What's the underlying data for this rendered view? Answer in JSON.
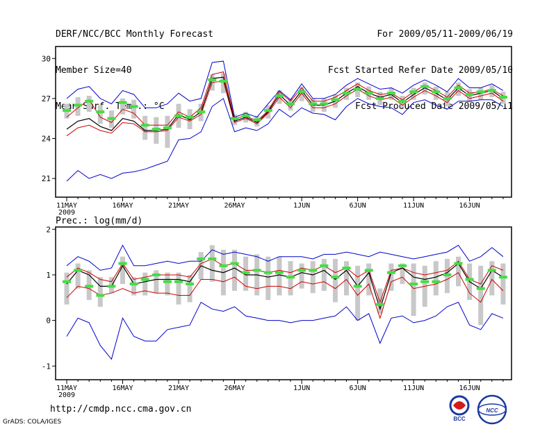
{
  "header": {
    "title": "DERF/NCC/BCC Monthly Forecast",
    "member": "Member Size=40",
    "variable": "Mean Surf. Temp.: °C",
    "period": "For 2009/05/11-2009/06/19",
    "started": "Fcst Started Refer Date 2009/05/10",
    "produced": "Fcst Produced Date 2009/05/11"
  },
  "footer": {
    "url": "http://cmdp.ncc.cma.gov.cn",
    "credit": "GrADS: COLA/IGES",
    "logo_bcc": "BCC",
    "logo_ncc": "NCC"
  },
  "colors": {
    "ensemble_mean": "#000000",
    "range": "#0000cc",
    "spread": "#cc0000",
    "box": "#c8c8c8",
    "median": "#44dd44"
  },
  "chart_data": [
    {
      "type": "line",
      "title": "Mean Surf. Temp.: °C",
      "x_tick_labels": [
        "11MAY",
        "16MAY",
        "21MAY",
        "26MAY",
        "1JUN",
        "6JUN",
        "11JUN",
        "16JUN"
      ],
      "x_tick_days": [
        0,
        5,
        10,
        15,
        21,
        26,
        31,
        36
      ],
      "year_label": "2009",
      "ylim": [
        19.6,
        30.9
      ],
      "y_ticks": [
        21,
        24,
        27,
        30
      ],
      "series": [
        {
          "name": "max",
          "role": "range",
          "values": [
            27.0,
            27.7,
            27.9,
            27.0,
            26.6,
            27.6,
            27.3,
            26.3,
            26.3,
            26.6,
            27.4,
            26.8,
            27.0,
            29.7,
            29.8,
            25.6,
            25.9,
            25.6,
            26.6,
            27.6,
            26.9,
            28.1,
            27.0,
            27.0,
            27.3,
            28.0,
            28.5,
            28.1,
            27.7,
            27.8,
            27.4,
            28.0,
            28.4,
            28.0,
            27.5,
            28.5,
            27.8,
            27.8,
            28.1,
            27.6
          ]
        },
        {
          "name": "upper",
          "role": "spread",
          "values": [
            25.6,
            26.3,
            26.9,
            25.6,
            25.2,
            26.2,
            25.9,
            25.0,
            25.0,
            25.0,
            26.0,
            25.6,
            26.3,
            28.8,
            29.0,
            25.5,
            25.7,
            25.3,
            26.1,
            27.5,
            26.8,
            27.8,
            26.8,
            26.8,
            27.1,
            27.6,
            28.1,
            27.6,
            27.3,
            27.4,
            26.9,
            27.5,
            28.0,
            27.6,
            27.1,
            28.0,
            27.4,
            27.5,
            27.7,
            27.2
          ]
        },
        {
          "name": "mean",
          "role": "ensemble_mean",
          "values": [
            24.7,
            25.3,
            25.5,
            24.9,
            24.6,
            25.5,
            25.3,
            24.6,
            24.6,
            24.7,
            25.8,
            25.4,
            26.0,
            28.5,
            28.6,
            25.3,
            25.6,
            25.2,
            26.0,
            27.3,
            26.5,
            27.6,
            26.5,
            26.5,
            26.8,
            27.4,
            27.9,
            27.4,
            27.1,
            27.3,
            26.7,
            27.3,
            27.8,
            27.4,
            26.9,
            27.8,
            27.2,
            27.4,
            27.6,
            27.0
          ]
        },
        {
          "name": "lower",
          "role": "spread",
          "values": [
            24.2,
            24.8,
            25.0,
            24.6,
            24.4,
            25.2,
            25.1,
            24.5,
            24.5,
            24.6,
            25.6,
            25.3,
            25.8,
            28.2,
            28.3,
            25.2,
            25.5,
            25.1,
            25.9,
            27.1,
            26.3,
            27.4,
            26.3,
            26.3,
            26.6,
            27.2,
            27.7,
            27.2,
            26.9,
            27.1,
            26.5,
            27.1,
            27.6,
            27.2,
            26.7,
            27.6,
            27.0,
            27.2,
            27.4,
            26.8
          ]
        },
        {
          "name": "min",
          "role": "range",
          "values": [
            20.8,
            21.6,
            21.0,
            21.3,
            21.0,
            21.4,
            21.5,
            21.7,
            22.0,
            22.3,
            23.9,
            24.0,
            24.5,
            26.4,
            27.0,
            24.5,
            24.8,
            24.6,
            25.1,
            26.2,
            25.6,
            26.3,
            25.9,
            25.8,
            25.4,
            26.4,
            27.0,
            26.6,
            26.4,
            26.3,
            25.8,
            26.7,
            26.9,
            26.5,
            26.2,
            26.8,
            26.8,
            26.9,
            26.9,
            26.4
          ]
        },
        {
          "name": "median",
          "role": "median",
          "values": [
            26.1,
            26.5,
            26.8,
            26.0,
            25.5,
            26.7,
            26.4,
            25.0,
            24.7,
            24.8,
            25.7,
            25.6,
            26.0,
            28.4,
            28.3,
            25.5,
            25.7,
            25.4,
            26.1,
            27.2,
            26.6,
            27.5,
            26.6,
            26.6,
            26.9,
            27.4,
            27.7,
            27.4,
            27.0,
            27.4,
            26.8,
            27.5,
            27.9,
            27.5,
            27.0,
            27.8,
            27.3,
            27.5,
            27.6,
            27.1
          ]
        },
        {
          "name": "box_top",
          "role": "box",
          "values": [
            26.6,
            27.1,
            27.2,
            26.5,
            26.1,
            27.0,
            26.9,
            25.7,
            25.6,
            25.7,
            26.6,
            26.2,
            26.6,
            28.8,
            28.9,
            25.8,
            26.0,
            25.7,
            26.5,
            27.6,
            27.0,
            27.9,
            27.0,
            27.0,
            27.3,
            27.8,
            28.2,
            27.9,
            27.5,
            27.8,
            27.2,
            27.8,
            28.2,
            27.9,
            27.5,
            28.2,
            27.7,
            27.8,
            28.0,
            27.5
          ]
        },
        {
          "name": "box_bottom",
          "role": "box",
          "values": [
            25.5,
            25.7,
            26.0,
            25.1,
            24.8,
            25.8,
            25.5,
            23.9,
            23.6,
            23.3,
            24.8,
            24.7,
            25.3,
            27.6,
            27.4,
            25.0,
            25.2,
            24.9,
            25.5,
            26.6,
            26.1,
            26.8,
            26.0,
            26.0,
            26.3,
            26.9,
            27.1,
            26.9,
            26.5,
            26.9,
            26.3,
            26.9,
            27.3,
            26.9,
            26.4,
            27.2,
            26.7,
            26.9,
            27.1,
            26.6
          ]
        }
      ]
    },
    {
      "type": "line",
      "title": "Prec.: log(mm/d)",
      "x_tick_labels": [
        "11MAY",
        "16MAY",
        "21MAY",
        "26MAY",
        "1JUN",
        "6JUN",
        "11JUN",
        "16JUN"
      ],
      "x_tick_days": [
        0,
        5,
        10,
        15,
        21,
        26,
        31,
        36
      ],
      "year_label": "2009",
      "ylim": [
        -1.3,
        2.05
      ],
      "y_ticks": [
        -1,
        0,
        1,
        2
      ],
      "series": [
        {
          "name": "max",
          "role": "range",
          "values": [
            1.2,
            1.4,
            1.3,
            1.1,
            1.15,
            1.65,
            1.2,
            1.2,
            1.25,
            1.3,
            1.25,
            1.3,
            1.3,
            1.55,
            1.45,
            1.5,
            1.45,
            1.4,
            1.3,
            1.4,
            1.4,
            1.4,
            1.35,
            1.45,
            1.45,
            1.5,
            1.45,
            1.4,
            1.5,
            1.45,
            1.4,
            1.35,
            1.4,
            1.45,
            1.5,
            1.65,
            1.3,
            1.4,
            1.6,
            1.4
          ]
        },
        {
          "name": "upper",
          "role": "spread",
          "values": [
            0.95,
            1.15,
            1.05,
            0.9,
            0.85,
            1.25,
            0.9,
            0.95,
            1.0,
            1.0,
            1.0,
            0.95,
            1.25,
            1.35,
            1.2,
            1.25,
            1.1,
            1.1,
            1.05,
            1.1,
            1.05,
            1.15,
            1.1,
            1.2,
            1.05,
            1.15,
            0.95,
            1.1,
            0.4,
            1.1,
            1.15,
            1.05,
            1.0,
            1.05,
            1.1,
            1.3,
            0.9,
            0.8,
            1.2,
            1.1
          ]
        },
        {
          "name": "mean",
          "role": "ensemble_mean",
          "values": [
            0.8,
            1.1,
            1.0,
            0.75,
            0.75,
            1.2,
            0.8,
            0.85,
            0.9,
            0.9,
            0.9,
            0.85,
            1.2,
            1.1,
            1.05,
            1.15,
            1.0,
            1.0,
            0.95,
            1.0,
            0.95,
            1.05,
            1.0,
            1.1,
            0.9,
            1.1,
            0.75,
            1.05,
            0.25,
            1.05,
            1.15,
            0.95,
            0.9,
            0.95,
            1.05,
            1.25,
            0.85,
            0.7,
            1.1,
            0.95
          ]
        },
        {
          "name": "lower",
          "role": "spread",
          "values": [
            0.5,
            0.75,
            0.7,
            0.55,
            0.6,
            0.7,
            0.6,
            0.65,
            0.6,
            0.6,
            0.55,
            0.55,
            0.9,
            0.9,
            0.85,
            0.95,
            0.75,
            0.7,
            0.75,
            0.75,
            0.7,
            0.85,
            0.8,
            0.85,
            0.7,
            0.9,
            0.55,
            0.8,
            0.05,
            0.85,
            0.95,
            0.7,
            0.75,
            0.8,
            0.9,
            1.05,
            0.6,
            0.4,
            0.9,
            0.65
          ]
        },
        {
          "name": "min",
          "role": "range",
          "values": [
            -0.35,
            0.05,
            -0.05,
            -0.55,
            -0.85,
            0.05,
            -0.35,
            -0.45,
            -0.45,
            -0.2,
            -0.15,
            -0.1,
            0.4,
            0.25,
            0.2,
            0.3,
            0.1,
            0.05,
            0.0,
            0.0,
            -0.05,
            0.0,
            0.0,
            0.05,
            0.1,
            0.3,
            0.0,
            0.15,
            -0.5,
            0.05,
            0.1,
            -0.05,
            0.0,
            0.1,
            0.3,
            0.4,
            -0.1,
            -0.2,
            0.15,
            0.05
          ]
        },
        {
          "name": "median",
          "role": "median",
          "values": [
            0.85,
            1.1,
            0.75,
            0.55,
            0.75,
            1.25,
            0.8,
            0.9,
            1.0,
            0.85,
            0.85,
            0.8,
            1.35,
            1.35,
            1.2,
            1.25,
            1.05,
            1.1,
            1.05,
            1.05,
            0.95,
            1.1,
            1.1,
            1.2,
            0.95,
            1.15,
            0.75,
            1.1,
            0.35,
            1.05,
            1.2,
            0.8,
            0.85,
            0.85,
            1.0,
            1.25,
            0.9,
            0.7,
            1.1,
            0.95
          ]
        },
        {
          "name": "box_top",
          "role": "box",
          "values": [
            1.05,
            1.25,
            1.1,
            0.95,
            0.95,
            1.4,
            0.95,
            1.05,
            1.1,
            1.05,
            1.05,
            1.0,
            1.5,
            1.65,
            1.55,
            1.55,
            1.4,
            1.45,
            1.4,
            1.4,
            1.3,
            1.25,
            1.3,
            1.35,
            1.35,
            1.3,
            1.2,
            1.25,
            0.7,
            1.25,
            1.25,
            1.25,
            1.2,
            1.3,
            1.35,
            1.4,
            1.25,
            1.2,
            1.3,
            1.25
          ]
        },
        {
          "name": "box_bottom",
          "role": "box",
          "values": [
            0.35,
            0.7,
            0.45,
            0.3,
            0.6,
            0.8,
            0.55,
            0.55,
            0.6,
            0.55,
            0.35,
            0.4,
            0.9,
            0.85,
            0.55,
            0.65,
            0.65,
            0.55,
            0.45,
            0.55,
            0.55,
            0.7,
            0.6,
            0.65,
            0.4,
            0.55,
            0.0,
            0.55,
            0.15,
            0.65,
            0.8,
            0.1,
            0.3,
            0.55,
            0.6,
            0.75,
            0.45,
            -0.1,
            0.55,
            0.35
          ]
        }
      ]
    }
  ]
}
